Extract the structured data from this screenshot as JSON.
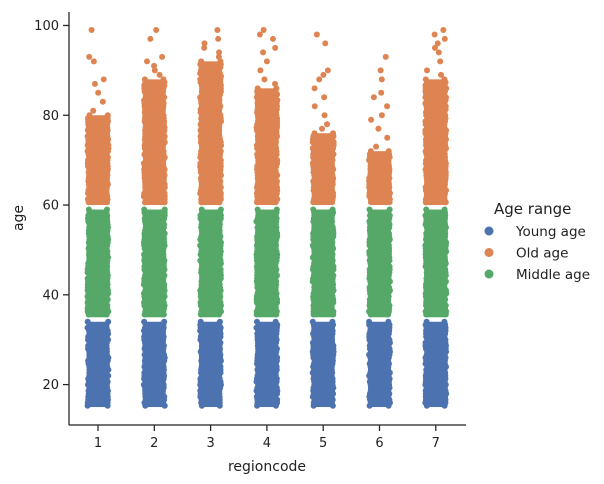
{
  "chart_data": {
    "type": "scatter",
    "subtype": "strip",
    "xlabel": "regioncode",
    "ylabel": "age",
    "categories": [
      "1",
      "2",
      "3",
      "4",
      "5",
      "6",
      "7"
    ],
    "ylim": [
      11,
      103
    ],
    "yticks": [
      20,
      40,
      60,
      80,
      100
    ],
    "grid": false,
    "legend": {
      "title": "Age range",
      "placement": "right",
      "entries": [
        {
          "name": "Young age",
          "color": "#4c72b0"
        },
        {
          "name": "Old age",
          "color": "#dd8452"
        },
        {
          "name": "Middle age",
          "color": "#55a868"
        }
      ]
    },
    "series": [
      {
        "name": "Young age",
        "color": "#4c72b0",
        "ranges": [
          {
            "category": "1",
            "min": 15,
            "max": 34
          },
          {
            "category": "2",
            "min": 15,
            "max": 34
          },
          {
            "category": "3",
            "min": 15,
            "max": 34
          },
          {
            "category": "4",
            "min": 15,
            "max": 34
          },
          {
            "category": "5",
            "min": 15,
            "max": 34
          },
          {
            "category": "6",
            "min": 15,
            "max": 34
          },
          {
            "category": "7",
            "min": 15,
            "max": 34
          }
        ]
      },
      {
        "name": "Middle age",
        "color": "#55a868",
        "ranges": [
          {
            "category": "1",
            "min": 35,
            "max": 59
          },
          {
            "category": "2",
            "min": 35,
            "max": 59
          },
          {
            "category": "3",
            "min": 35,
            "max": 59
          },
          {
            "category": "4",
            "min": 35,
            "max": 59
          },
          {
            "category": "5",
            "min": 35,
            "max": 59
          },
          {
            "category": "6",
            "min": 35,
            "max": 59
          },
          {
            "category": "7",
            "min": 35,
            "max": 59
          }
        ]
      },
      {
        "name": "Old age",
        "color": "#dd8452",
        "ranges": [
          {
            "category": "1",
            "min": 60,
            "max": 80
          },
          {
            "category": "2",
            "min": 60,
            "max": 88
          },
          {
            "category": "3",
            "min": 60,
            "max": 92
          },
          {
            "category": "4",
            "min": 60,
            "max": 86
          },
          {
            "category": "5",
            "min": 60,
            "max": 76
          },
          {
            "category": "6",
            "min": 60,
            "max": 72
          },
          {
            "category": "7",
            "min": 60,
            "max": 88
          }
        ],
        "outliers": [
          {
            "category": "1",
            "values": [
              81,
              83,
              85,
              87,
              88,
              92,
              93,
              99
            ]
          },
          {
            "category": "2",
            "values": [
              89,
              90,
              91,
              92,
              93,
              97,
              99
            ]
          },
          {
            "category": "3",
            "values": [
              93,
              94,
              95,
              96,
              97,
              99
            ]
          },
          {
            "category": "4",
            "values": [
              87,
              88,
              90,
              92,
              94,
              95,
              97,
              98,
              99
            ]
          },
          {
            "category": "5",
            "values": [
              77,
              78,
              80,
              82,
              84,
              86,
              88,
              89,
              90,
              96,
              98
            ]
          },
          {
            "category": "6",
            "values": [
              73,
              75,
              77,
              79,
              80,
              82,
              84,
              85,
              88,
              90,
              93
            ]
          },
          {
            "category": "7",
            "values": [
              89,
              90,
              92,
              94,
              95,
              96,
              97,
              98,
              99
            ]
          }
        ]
      }
    ]
  }
}
